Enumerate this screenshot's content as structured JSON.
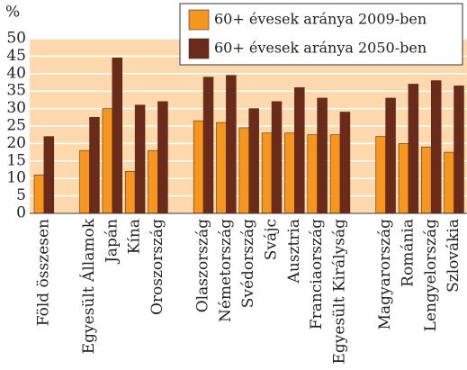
{
  "chart_data": {
    "type": "bar",
    "ylabel": "%",
    "categories": [
      "Föld összesen",
      null,
      "Egyesült Államok",
      "Japán",
      "Kína",
      "Oroszország",
      null,
      "Olaszország",
      "Németország",
      "Svédország",
      "Svájc",
      "Ausztria",
      "Franciaország",
      "Egyesült Királyság",
      null,
      "Magyarország",
      "Románia",
      "Lengyelország",
      "Szlovákia"
    ],
    "series": [
      {
        "name": "60+ évesek aránya 2009-ben",
        "color": "#f7961e",
        "values": [
          11,
          null,
          18,
          30,
          12,
          18,
          null,
          26.5,
          26,
          24.5,
          23,
          23,
          22.5,
          22.5,
          null,
          22,
          20,
          19,
          17.5
        ]
      },
      {
        "name": "60+ évesek aránya 2050-ben",
        "color": "#6b2b1b",
        "values": [
          22,
          null,
          27.5,
          44.5,
          31,
          32,
          null,
          39,
          39.5,
          30,
          32,
          36,
          33,
          29,
          null,
          33,
          37,
          38,
          36.5
        ]
      }
    ],
    "ylim": [
      0,
      50
    ],
    "yticks": [
      0,
      5,
      10,
      15,
      20,
      25,
      30,
      35,
      40,
      45,
      50
    ],
    "grid": true,
    "legend": "top-right"
  }
}
